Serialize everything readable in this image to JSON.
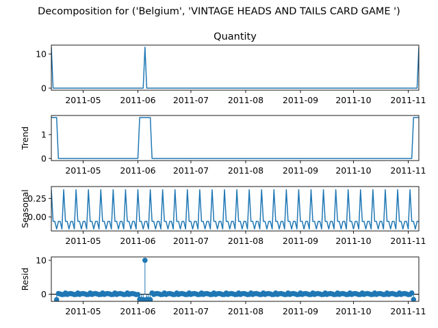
{
  "chart_data": {
    "suptitle": "Decomposition for ('Belgium', 'VINTAGE HEADS AND TAILS CARD GAME ')",
    "x_domain": [
      "2011-04-13",
      "2011-11-07"
    ],
    "x_ticks": [
      {
        "date": "2011-05-01",
        "label": "2011-05"
      },
      {
        "date": "2011-06-01",
        "label": "2011-06"
      },
      {
        "date": "2011-07-01",
        "label": "2011-07"
      },
      {
        "date": "2011-08-01",
        "label": "2011-08"
      },
      {
        "date": "2011-09-01",
        "label": "2011-09"
      },
      {
        "date": "2011-10-01",
        "label": "2011-10"
      },
      {
        "date": "2011-11-01",
        "label": "2011-11"
      }
    ],
    "panels": [
      {
        "key": "observed",
        "type": "line",
        "title": "Quantity",
        "ylabel": "",
        "ylim": [
          -0.6,
          12.6
        ],
        "yticks": [
          0,
          10
        ],
        "baseline": 0,
        "events": [
          {
            "start": "2011-04-13",
            "end": "2011-04-13",
            "value": 12
          },
          {
            "start": "2011-06-05",
            "end": "2011-06-05",
            "value": 12
          },
          {
            "start": "2011-11-07",
            "end": "2011-11-07",
            "value": 12
          }
        ]
      },
      {
        "key": "trend",
        "type": "line",
        "title": "",
        "ylabel": "Trend",
        "ylim": [
          -0.09,
          1.8
        ],
        "yticks": [
          0,
          1
        ],
        "baseline": 0,
        "events": [
          {
            "start": "2011-04-13",
            "end": "2011-04-16",
            "value": 1.714
          },
          {
            "start": "2011-06-02",
            "end": "2011-06-08",
            "value": 1.714
          },
          {
            "start": "2011-11-04",
            "end": "2011-11-07",
            "value": 1.714
          }
        ]
      },
      {
        "key": "seasonal",
        "type": "line",
        "title": "",
        "ylabel": "Seasonal",
        "ylim": [
          -0.19,
          0.41
        ],
        "yticks": [
          0.0,
          0.25
        ],
        "period": 7,
        "pattern": [
          0.367,
          -0.061,
          -0.061,
          -0.163,
          -0.061,
          -0.061,
          -0.163
        ]
      },
      {
        "key": "resid",
        "type": "scatter",
        "title": "",
        "ylabel": "Resid",
        "ylim": [
          -2.1,
          11.0
        ],
        "yticks": [
          0,
          10
        ],
        "stems": true,
        "base_values": [
          -0.06,
          0.37,
          -0.06,
          0.14,
          0.2,
          0.08,
          -0.1
        ],
        "outliers": [
          {
            "date": "2011-04-16",
            "value": -1.6
          },
          {
            "date": "2011-06-02",
            "value": -1.5
          },
          {
            "date": "2011-06-03",
            "value": -1.55
          },
          {
            "date": "2011-06-04",
            "value": -1.6
          },
          {
            "date": "2011-06-05",
            "value": 10.0
          },
          {
            "date": "2011-06-06",
            "value": -1.5
          },
          {
            "date": "2011-06-07",
            "value": -1.55
          },
          {
            "date": "2011-06-08",
            "value": -1.6
          },
          {
            "date": "2011-11-04",
            "value": -1.55
          }
        ]
      }
    ],
    "colors": {
      "series": "#1f77b4",
      "axis": "#000000",
      "text": "#000000",
      "background": "#ffffff"
    }
  }
}
